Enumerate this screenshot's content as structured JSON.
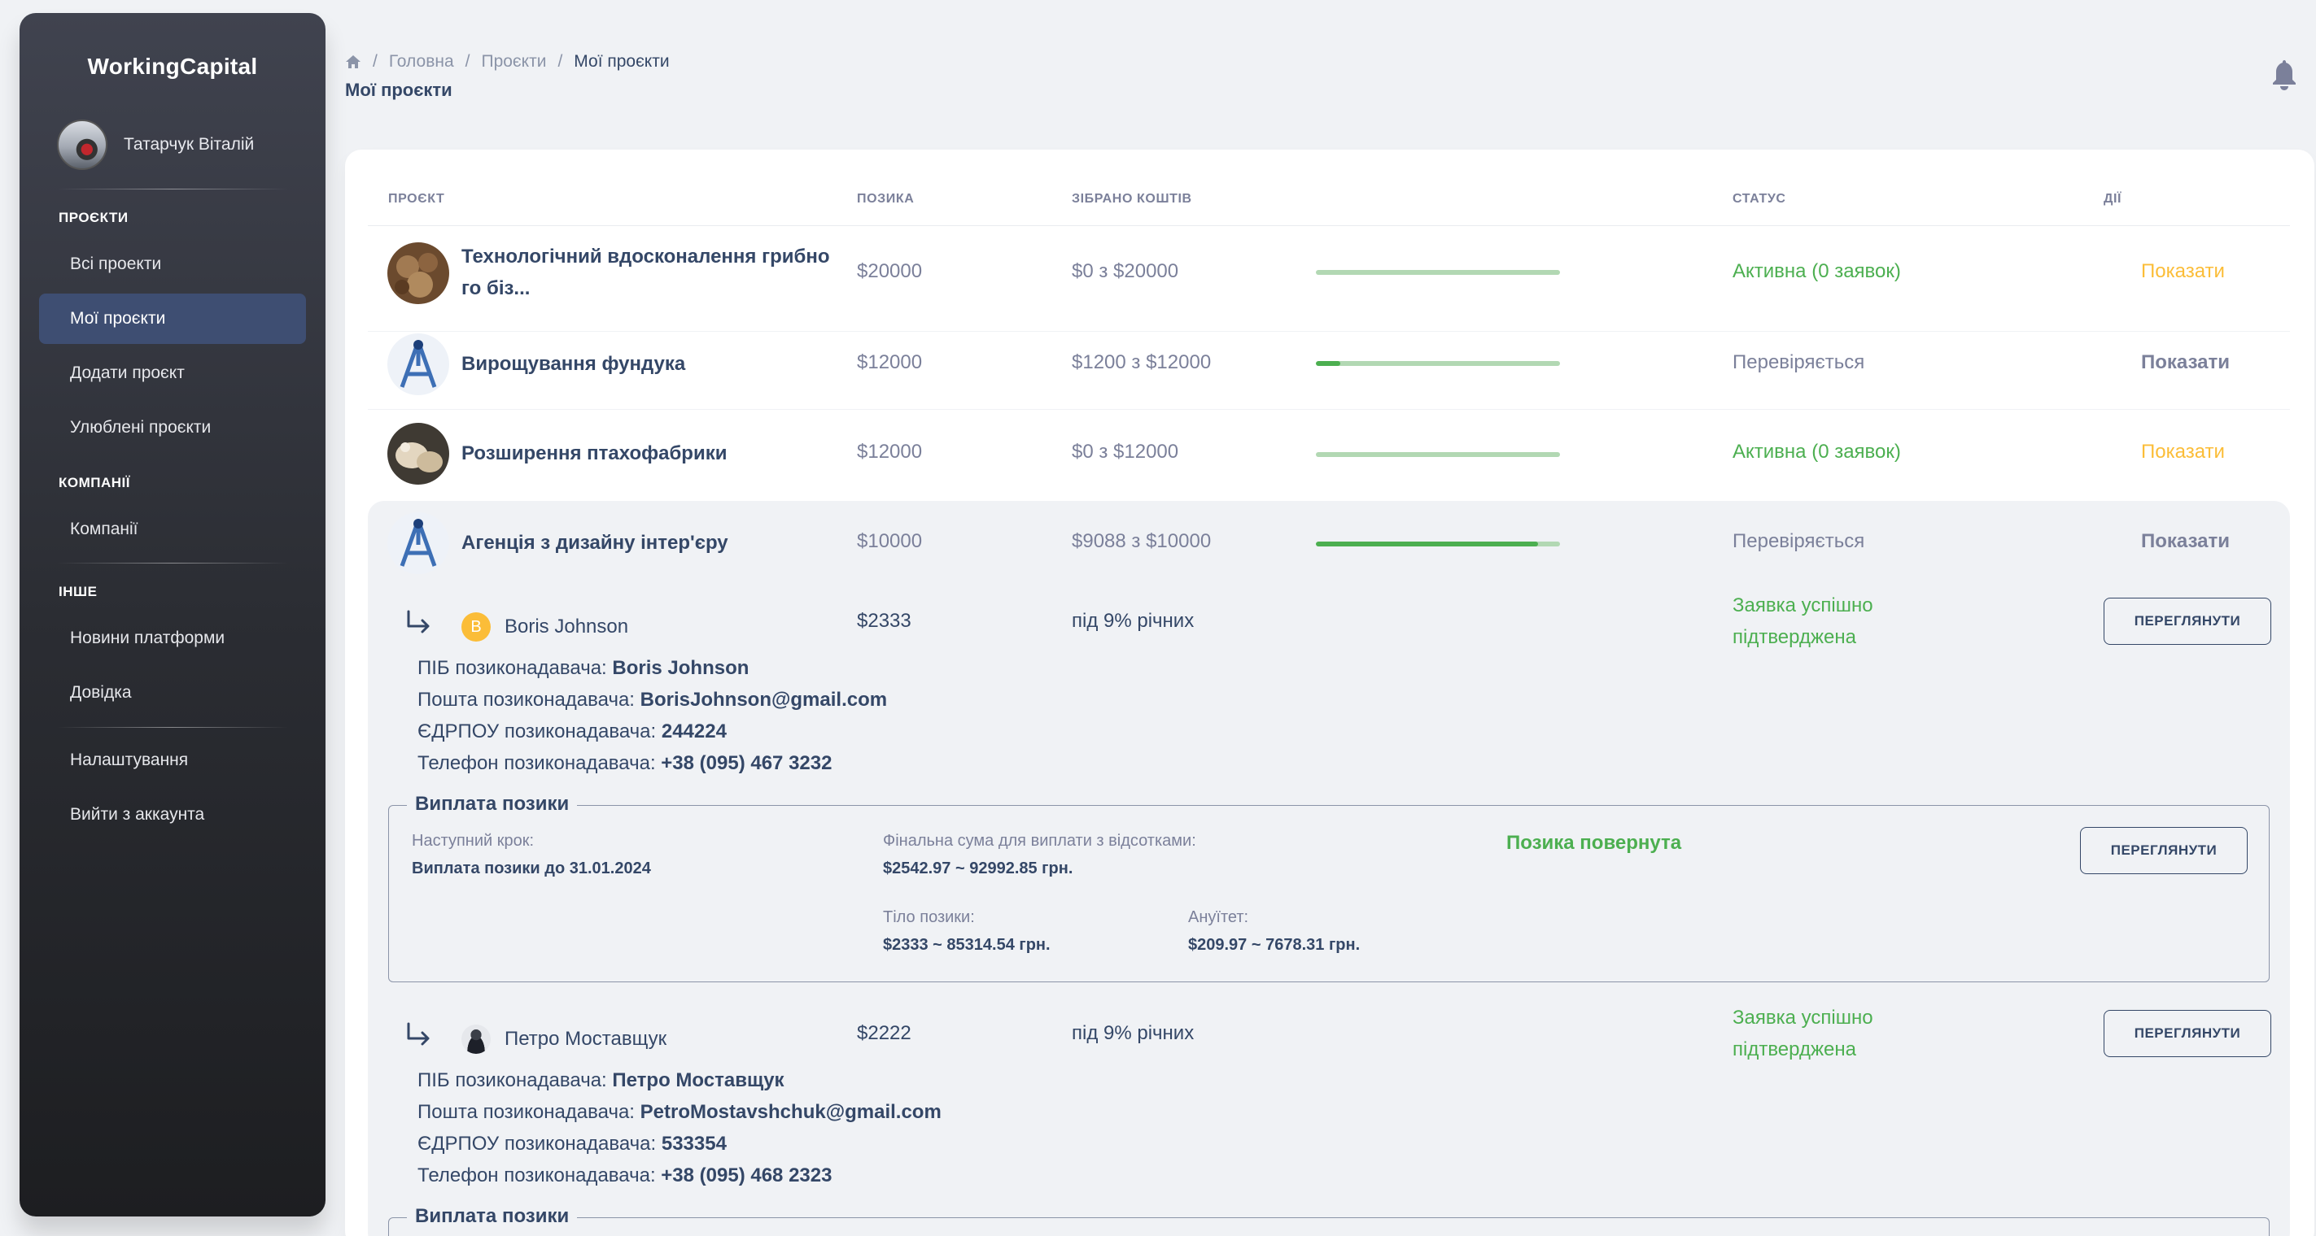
{
  "sidebar": {
    "brand": "WorkingCapital",
    "user": "Татарчук Віталій",
    "sections": {
      "projects": "ПРОЄКТИ",
      "companies": "КОМПАНІЇ",
      "other": "ІНШЕ"
    },
    "items": {
      "all_projects": "Всі проекти",
      "my_projects": "Мої проєкти",
      "add_project": "Додати проєкт",
      "favorites": "Улюблені проєкти",
      "companies": "Компанії",
      "news": "Новини платформи",
      "help": "Довідка",
      "settings": "Налаштування",
      "logout": "Вийти з аккаунта"
    }
  },
  "header": {
    "breadcrumb": [
      "Головна",
      "Проєкти",
      "Мої проєкти"
    ],
    "title": "Мої проєкти"
  },
  "table": {
    "columns": {
      "project": "ПРОЄКТ",
      "loan": "ПОЗИКА",
      "raised": "ЗІБРАНО КОШТІВ",
      "status": "СТАТУС",
      "actions": "ДІЇ"
    },
    "rows": [
      {
        "name_line1": "Технологічний вдосконалення грибно",
        "name_line2": "го біз...",
        "loan": "$20000",
        "raised": "$0 з $20000",
        "progress": 0.0,
        "status": "Активна (0 заявок)",
        "action": "Показати"
      },
      {
        "name": "Вирощування фундука",
        "loan": "$12000",
        "raised": "$1200 з $12000",
        "progress": 0.1,
        "status": "Перевіряється",
        "action": "Показати"
      },
      {
        "name": "Розширення птахофабрики",
        "loan": "$12000",
        "raised": "$0 з $12000",
        "progress": 0.0,
        "status": "Активна (0 заявок)",
        "action": "Показати"
      },
      {
        "name": "Агенція з дизайну інтер'єру",
        "loan": "$10000",
        "raised": "$9088 з $10000",
        "progress": 0.9088,
        "status": "Перевіряється",
        "action": "Показати"
      }
    ]
  },
  "lenders": [
    {
      "initial": "B",
      "name": "Boris Johnson",
      "amount": "$2333",
      "rate": "під 9% річних",
      "status_line1": "Заявка успішно",
      "status_line2": "підтверджена",
      "button": "ПЕРЕГЛЯНУТИ",
      "fio_label": "ПІБ позиконадавача: ",
      "fio": "Boris Johnson",
      "email_label": "Пошта позиконадавача: ",
      "email": "BorisJohnson@gmail.com",
      "edrpou_label": "ЄДРПОУ позиконадавача: ",
      "edrpou": "244224",
      "phone_label": "Телефон позиконадавача: ",
      "phone": "+38 (095) 467 3232",
      "repayment": {
        "legend": "Виплата позики",
        "next_step_label": "Наступний крок:",
        "next_step": "Виплата позики до 31.01.2024",
        "final_label": "Фінальна сума для виплати з відсотками:",
        "final_value": "$2542.97 ~ 92992.85 грн.",
        "status": "Позика повернута",
        "button": "ПЕРЕГЛЯНУТИ",
        "body_label": "Тіло позики:",
        "body_value": "$2333 ~ 85314.54 грн.",
        "annuity_label": "Ануїтет:",
        "annuity_value": "$209.97 ~ 7678.31 грн."
      }
    },
    {
      "name": "Петро Моставщук",
      "amount": "$2222",
      "rate": "під 9% річних",
      "status_line1": "Заявка успішно",
      "status_line2": "підтверджена",
      "button": "ПЕРЕГЛЯНУТИ",
      "fio_label": "ПІБ позиконадавача: ",
      "fio": "Петро Моставщук",
      "email_label": "Пошта позиконадавача: ",
      "email": "PetroMostavshchuk@gmail.com",
      "edrpou_label": "ЄДРПОУ позиконадавача: ",
      "edrpou": "533354",
      "phone_label": "Телефон позиконадавача: ",
      "phone": "+38 (095) 468 2323",
      "repayment": {
        "legend": "Виплата позики"
      }
    }
  ],
  "colors": {
    "accent_active": "#3e4e72",
    "status_green": "#4caf50",
    "show_yellow": "#fbbd38",
    "text_dark": "#344767",
    "text_muted": "#7b809a"
  },
  "icons": [
    "home-icon",
    "bell-icon",
    "return-arrow-icon"
  ]
}
